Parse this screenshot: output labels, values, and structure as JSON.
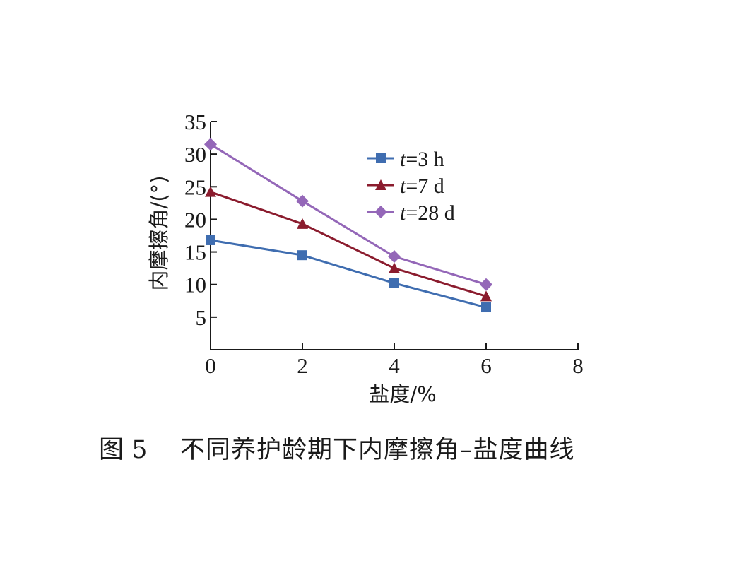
{
  "chart_data": {
    "type": "line",
    "x": [
      0,
      2,
      4,
      6
    ],
    "series": [
      {
        "name_prefix": "t",
        "name_value": "=3 h",
        "color": "#3f6db0",
        "marker": "square",
        "values": [
          16.8,
          14.5,
          10.2,
          6.5
        ]
      },
      {
        "name_prefix": "t",
        "name_value": "=7 d",
        "color": "#8b1c2e",
        "marker": "triangle",
        "values": [
          24.2,
          19.3,
          12.5,
          8.2
        ]
      },
      {
        "name_prefix": "t",
        "name_value": "=28 d",
        "color": "#9467b8",
        "marker": "diamond",
        "values": [
          31.5,
          22.8,
          14.3,
          10.0
        ]
      }
    ],
    "xlim": [
      0,
      8
    ],
    "ylim": [
      0,
      35
    ],
    "xticks": [
      0,
      2,
      4,
      6,
      8
    ],
    "yticks": [
      5,
      10,
      15,
      20,
      25,
      30,
      35
    ],
    "xlabel": "盐度/%",
    "ylabel": "内摩擦角/(°)",
    "legend_position": "top-right",
    "grid": false
  },
  "caption": {
    "number": "图 5",
    "title": "不同养护龄期下内摩擦角–盐度曲线"
  }
}
